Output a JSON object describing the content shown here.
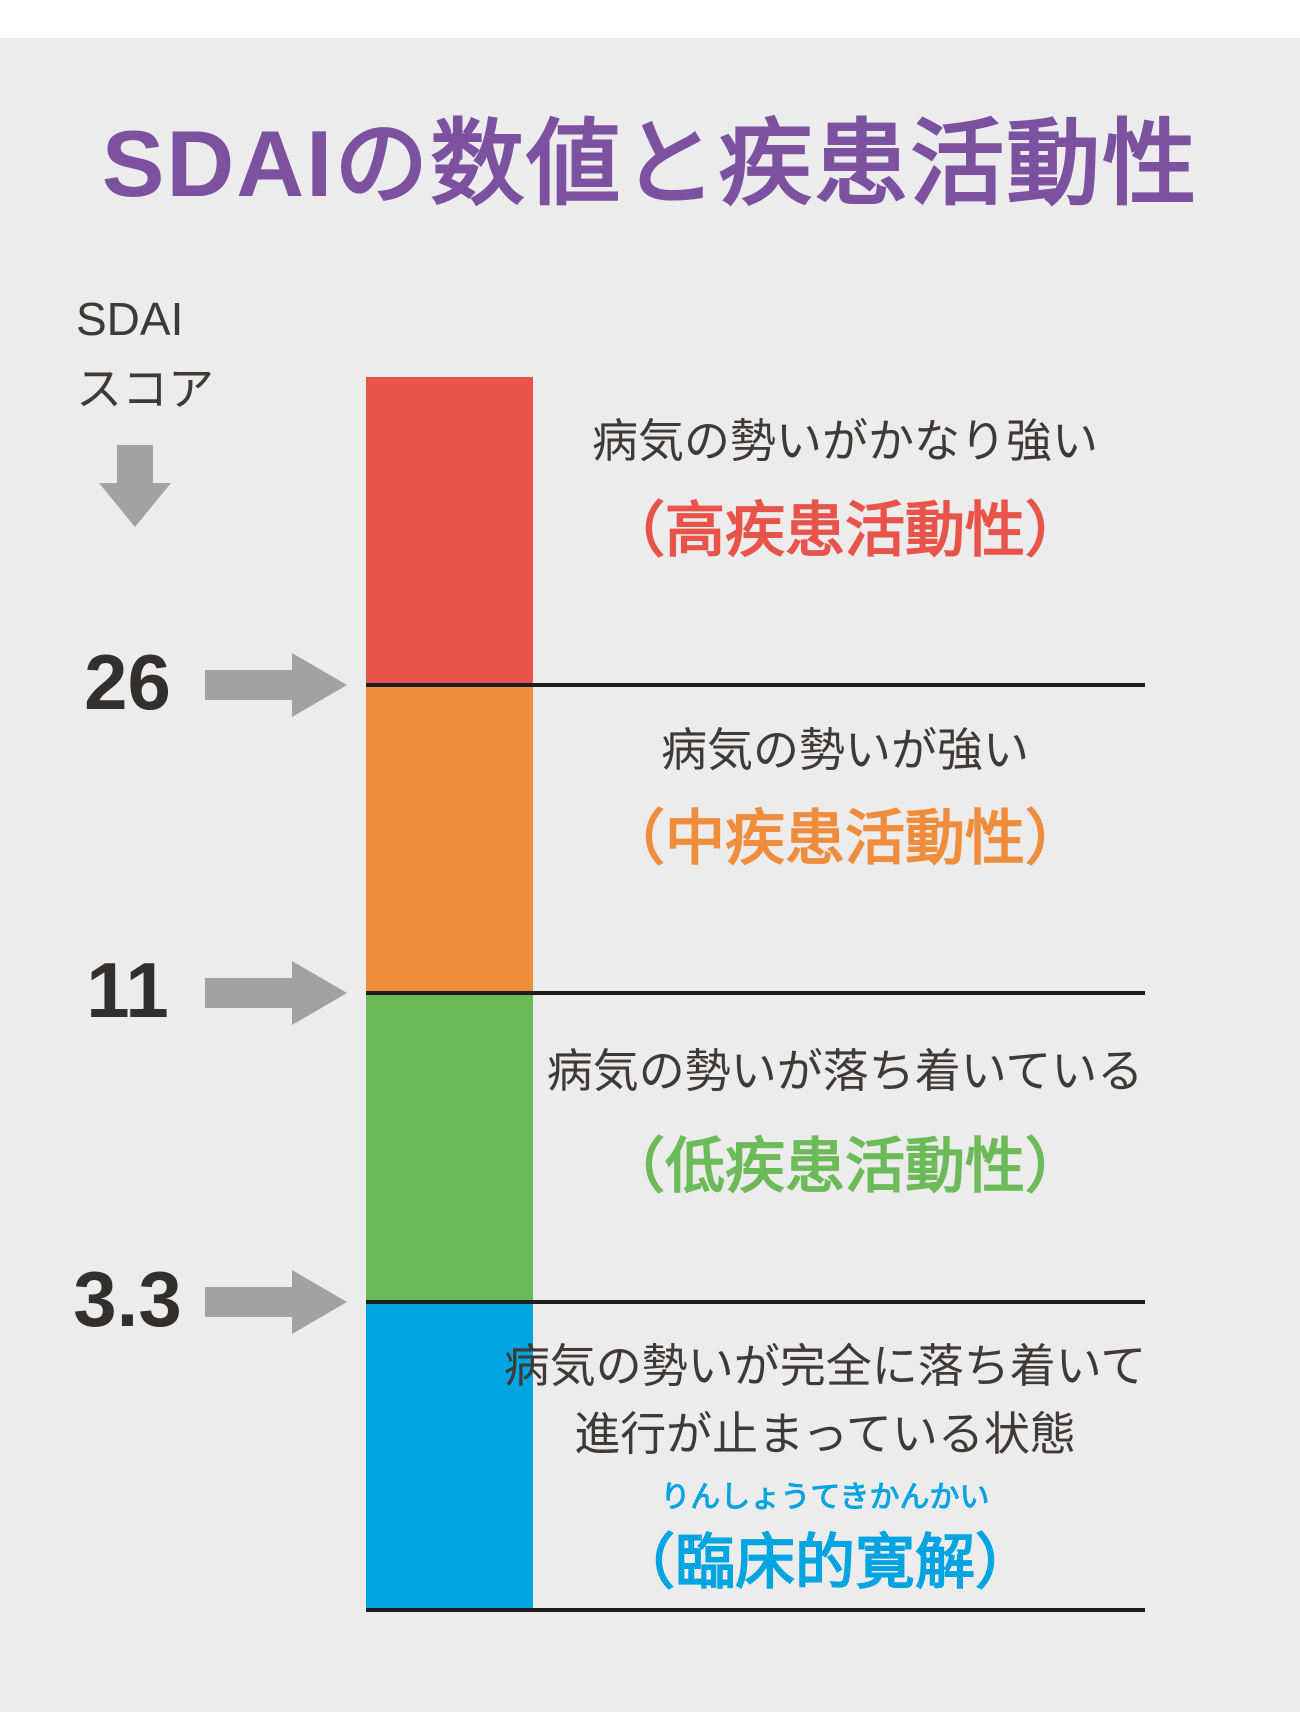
{
  "title": "SDAIの数値と疾患活動性",
  "axis_label": {
    "line1": "SDAI",
    "line2": "スコア"
  },
  "thresholds": [
    {
      "value": "26"
    },
    {
      "value": "11"
    },
    {
      "value": "3.3"
    }
  ],
  "segments": [
    {
      "id": "high-disease-activity",
      "description": "病気の勢いがかなり強い",
      "label": "（高疾患活動性）",
      "color": "#E8544A"
    },
    {
      "id": "moderate-disease-activity",
      "description": "病気の勢いが強い",
      "label": "（中疾患活動性）",
      "color": "#F08D3C"
    },
    {
      "id": "low-disease-activity",
      "description": "病気の勢いが落ち着いている",
      "label": "（低疾患活動性）",
      "color": "#6CBA58"
    },
    {
      "id": "clinical-remission",
      "description_line1": "病気の勢いが完全に落ち着いて",
      "description_line2": "進行が止まっている状態",
      "furigana": "りんしょうてきかんかい",
      "label": "（臨床的寛解）",
      "color": "#00A4E0"
    }
  ],
  "colors": {
    "title": "#7C519F",
    "background_panel": "#ECECEC",
    "page": "#FFFFFF",
    "text_dark": "#3E3A39",
    "number_dark": "#332F2E",
    "arrow_gray": "#A2A2A2",
    "line_black": "#1E1E1E"
  }
}
